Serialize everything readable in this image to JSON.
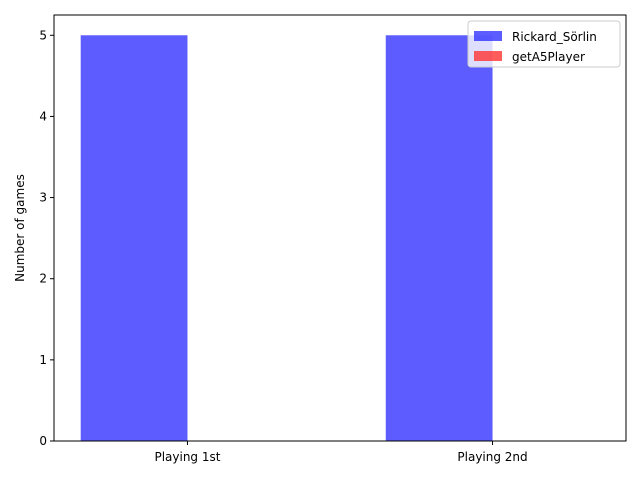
{
  "chart_data": {
    "type": "bar",
    "title": "",
    "xlabel": "",
    "ylabel": "Number of games",
    "categories": [
      "Playing 1st",
      "Playing 2nd"
    ],
    "series": [
      {
        "name": "Rickard_Sörlin",
        "values": [
          5,
          5
        ],
        "color": "#3333ff"
      },
      {
        "name": "getA5Player",
        "values": [
          0,
          0
        ],
        "color": "#ff3333"
      }
    ],
    "ylim": [
      0,
      5.25
    ],
    "yticks": [
      0,
      1,
      2,
      3,
      4,
      5
    ],
    "legend_position": "top-right",
    "grid": false
  }
}
